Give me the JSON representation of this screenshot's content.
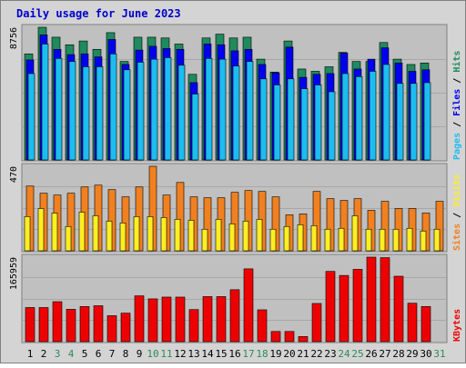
{
  "title": "Daily usage for June 2023",
  "colors": {
    "hits": "#1f8a5e",
    "files": "#0000ee",
    "pages": "#1cbdf0",
    "visits": "#f08020",
    "sites": "#ffee22",
    "kbytes": "#ee0000",
    "title_text": "#0000cc",
    "weekend_day": "#2b8a5a",
    "weekday_day": "#000000",
    "panel_bg": "#c0c0c0",
    "frame_bg": "#d4d4d4"
  },
  "chart_data": [
    {
      "type": "bar",
      "title": "Daily usage for June 2023",
      "categories": [
        "1",
        "2",
        "3",
        "4",
        "5",
        "6",
        "7",
        "8",
        "9",
        "10",
        "11",
        "12",
        "13",
        "14",
        "15",
        "16",
        "17",
        "18",
        "19",
        "20",
        "21",
        "22",
        "23",
        "24",
        "25",
        "26",
        "27",
        "28",
        "29",
        "30",
        "31"
      ],
      "weekend_days": [
        "3",
        "4",
        "10",
        "11",
        "17",
        "18",
        "24",
        "25",
        "31"
      ],
      "ylim": [
        0,
        8756
      ],
      "y_tick_label": "8756",
      "right_label_parts": [
        "Pages",
        "Files",
        "Hits"
      ],
      "series": [
        {
          "name": "Hits",
          "values": [
            7000,
            8756,
            8100,
            7600,
            7850,
            7300,
            8400,
            6500,
            8100,
            8100,
            8050,
            7650,
            5650,
            8050,
            8300,
            8050,
            8100,
            6650,
            5800,
            7850,
            6000,
            5850,
            6150,
            7100,
            6500,
            6500,
            7750,
            6650,
            6300,
            6400,
            0
          ]
        },
        {
          "name": "Files",
          "values": [
            6600,
            8250,
            7300,
            6950,
            7000,
            6800,
            7950,
            6300,
            7250,
            7500,
            7350,
            7300,
            5100,
            7650,
            7600,
            7200,
            7300,
            6300,
            5750,
            7450,
            5450,
            5650,
            5700,
            7050,
            6000,
            6650,
            7400,
            6400,
            5850,
            5950,
            0
          ]
        },
        {
          "name": "Pages",
          "values": [
            5700,
            7650,
            6700,
            6500,
            6150,
            6150,
            7000,
            5950,
            6450,
            6650,
            6750,
            6250,
            4350,
            6700,
            6650,
            6200,
            6500,
            5350,
            4950,
            5350,
            4700,
            4950,
            4500,
            5700,
            5500,
            5850,
            6300,
            5050,
            5050,
            5100,
            0
          ]
        }
      ]
    },
    {
      "type": "bar",
      "categories": [
        "1",
        "2",
        "3",
        "4",
        "5",
        "6",
        "7",
        "8",
        "9",
        "10",
        "11",
        "12",
        "13",
        "14",
        "15",
        "16",
        "17",
        "18",
        "19",
        "20",
        "21",
        "22",
        "23",
        "24",
        "25",
        "26",
        "27",
        "28",
        "29",
        "30",
        "31"
      ],
      "ylim": [
        0,
        470
      ],
      "y_tick_label": "470",
      "right_label_parts": [
        "Sites",
        "Visits"
      ],
      "series": [
        {
          "name": "Visits",
          "values": [
            360,
            320,
            310,
            320,
            355,
            365,
            340,
            300,
            355,
            470,
            310,
            380,
            300,
            295,
            295,
            325,
            335,
            330,
            300,
            200,
            205,
            330,
            290,
            280,
            290,
            225,
            275,
            235,
            235,
            210,
            275
          ]
        },
        {
          "name": "Sites",
          "values": [
            190,
            235,
            210,
            135,
            215,
            195,
            165,
            155,
            190,
            190,
            185,
            175,
            170,
            120,
            175,
            150,
            165,
            175,
            120,
            135,
            145,
            140,
            120,
            125,
            195,
            120,
            120,
            120,
            125,
            110,
            120
          ]
        }
      ]
    },
    {
      "type": "bar",
      "categories": [
        "1",
        "2",
        "3",
        "4",
        "5",
        "6",
        "7",
        "8",
        "9",
        "10",
        "11",
        "12",
        "13",
        "14",
        "15",
        "16",
        "17",
        "18",
        "19",
        "20",
        "21",
        "22",
        "23",
        "24",
        "25",
        "26",
        "27",
        "28",
        "29",
        "30",
        "31"
      ],
      "ylim": [
        0,
        165959
      ],
      "y_tick_label": "165959",
      "right_label_parts": [
        "KBytes"
      ],
      "series": [
        {
          "name": "KBytes",
          "values": [
            67000,
            67000,
            78500,
            63500,
            69000,
            70500,
            51000,
            56000,
            90000,
            84000,
            87500,
            87500,
            63000,
            88500,
            88500,
            102000,
            143000,
            62500,
            20000,
            20000,
            10000,
            75000,
            138000,
            130000,
            142000,
            165959,
            165000,
            128500,
            75500,
            69000,
            0
          ]
        }
      ]
    }
  ]
}
